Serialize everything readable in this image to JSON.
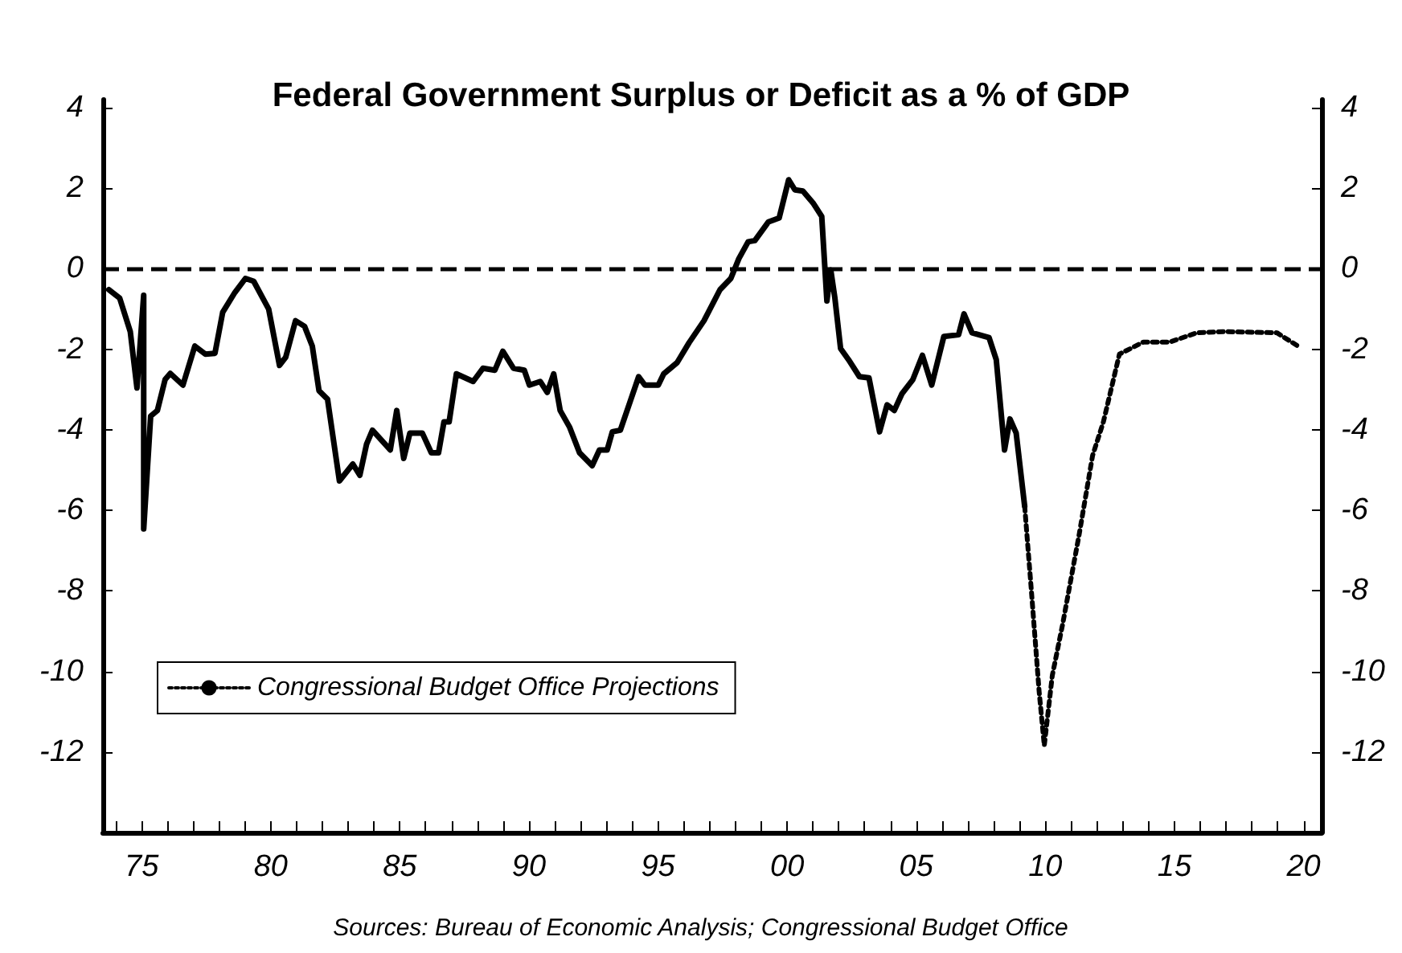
{
  "chart_data": {
    "type": "line",
    "title": "Federal Government Surplus or Deficit as a % of GDP",
    "annotations": [
      "Sources: Bureau of Economic Analysis; Congressional Budget Office"
    ],
    "xlim": [
      1973.5,
      2020.7
    ],
    "xticks": [
      {
        "value": 1974,
        "label": null
      },
      {
        "value": 1975,
        "label": "75"
      },
      {
        "value": 1976,
        "label": null
      },
      {
        "value": 1977,
        "label": null
      },
      {
        "value": 1978,
        "label": null
      },
      {
        "value": 1979,
        "label": null
      },
      {
        "value": 1980,
        "label": "80"
      },
      {
        "value": 1981,
        "label": null
      },
      {
        "value": 1982,
        "label": null
      },
      {
        "value": 1983,
        "label": null
      },
      {
        "value": 1984,
        "label": null
      },
      {
        "value": 1985,
        "label": "85"
      },
      {
        "value": 1986,
        "label": null
      },
      {
        "value": 1987,
        "label": null
      },
      {
        "value": 1988,
        "label": null
      },
      {
        "value": 1989,
        "label": null
      },
      {
        "value": 1990,
        "label": "90"
      },
      {
        "value": 1991,
        "label": null
      },
      {
        "value": 1992,
        "label": null
      },
      {
        "value": 1993,
        "label": null
      },
      {
        "value": 1994,
        "label": null
      },
      {
        "value": 1995,
        "label": "95"
      },
      {
        "value": 1996,
        "label": null
      },
      {
        "value": 1997,
        "label": null
      },
      {
        "value": 1998,
        "label": null
      },
      {
        "value": 1999,
        "label": null
      },
      {
        "value": 2000,
        "label": "00"
      },
      {
        "value": 2001,
        "label": null
      },
      {
        "value": 2002,
        "label": null
      },
      {
        "value": 2003,
        "label": null
      },
      {
        "value": 2004,
        "label": null
      },
      {
        "value": 2005,
        "label": "05"
      },
      {
        "value": 2006,
        "label": null
      },
      {
        "value": 2007,
        "label": null
      },
      {
        "value": 2008,
        "label": null
      },
      {
        "value": 2009,
        "label": null
      },
      {
        "value": 2010,
        "label": "10"
      },
      {
        "value": 2011,
        "label": null
      },
      {
        "value": 2012,
        "label": null
      },
      {
        "value": 2013,
        "label": null
      },
      {
        "value": 2014,
        "label": null
      },
      {
        "value": 2015,
        "label": "15"
      },
      {
        "value": 2016,
        "label": null
      },
      {
        "value": 2017,
        "label": null
      },
      {
        "value": 2018,
        "label": null
      },
      {
        "value": 2019,
        "label": null
      },
      {
        "value": 2020,
        "label": "20"
      }
    ],
    "ylim": [
      -14,
      4.2
    ],
    "yticks": [
      -12,
      -10,
      -8,
      -6,
      -4,
      -2,
      0,
      2,
      4
    ],
    "y2lim": [
      -14,
      4.2
    ],
    "y2ticks": [
      -12,
      -10,
      -8,
      -6,
      -4,
      -2,
      0,
      2,
      4
    ],
    "grid": false,
    "legend": "bottom left",
    "marker": "none",
    "ref_lines": [
      {
        "axis": "y",
        "value": 0,
        "color": "#000000",
        "line_style": "dashed"
      }
    ],
    "series": [
      {
        "color": "#000000",
        "line_style": "solid",
        "x": [
          1973.73,
          1974.15,
          1974.56,
          1974.82,
          1975.08,
          1975.08,
          1975.35,
          1975.61,
          1975.91,
          1976.11,
          1976.6,
          1977.06,
          1977.47,
          1977.84,
          1978.14,
          1978.61,
          1979.02,
          1979.34,
          1979.92,
          1980.34,
          1980.58,
          1980.96,
          1981.31,
          1981.61,
          1981.87,
          1982.2,
          1982.66,
          1983.18,
          1983.45,
          1983.71,
          1983.94,
          1984.63,
          1984.88,
          1985.15,
          1985.39,
          1985.87,
          1986.22,
          1986.5,
          1986.71,
          1986.91,
          1987.19,
          1987.84,
          1988.22,
          1988.68,
          1988.99,
          1989.4,
          1989.82,
          1990.02,
          1990.44,
          1990.71,
          1990.96,
          1991.21,
          1991.58,
          1991.96,
          1992.45,
          1992.73,
          1993.03,
          1993.23,
          1993.54,
          1994.25,
          1994.49,
          1995.01,
          1995.22,
          1995.74,
          1996.2,
          1996.78,
          1997.4,
          1997.82,
          1998.13,
          1998.49,
          1998.75,
          1999.27,
          1999.69,
          2000.06,
          2000.3,
          2000.61,
          2001.02,
          2001.34,
          2001.54,
          2001.69,
          2001.85,
          2002.07,
          2002.38,
          2002.8,
          2003.17,
          2003.58,
          2003.87,
          2004.15,
          2004.45,
          2004.87,
          2005.24,
          2005.6,
          2006.07,
          2006.64,
          2006.85,
          2007.16,
          2007.82,
          2008.1,
          2008.42,
          2008.63,
          2008.87,
          2009.2
        ],
        "values": [
          -0.52,
          -0.73,
          -1.56,
          -2.96,
          -0.66,
          -6.46,
          -3.66,
          -3.52,
          -2.75,
          -2.6,
          -2.89,
          -1.92,
          -2.12,
          -2.1,
          -1.08,
          -0.59,
          -0.24,
          -0.31,
          -1.0,
          -2.4,
          -2.2,
          -1.29,
          -1.43,
          -1.92,
          -3.03,
          -3.24,
          -5.27,
          -4.85,
          -5.13,
          -4.36,
          -4.01,
          -4.5,
          -3.52,
          -4.71,
          -4.08,
          -4.08,
          -4.57,
          -4.57,
          -3.8,
          -3.8,
          -2.61,
          -2.8,
          -2.47,
          -2.52,
          -2.05,
          -2.47,
          -2.52,
          -2.89,
          -2.8,
          -3.07,
          -2.61,
          -3.52,
          -3.94,
          -4.57,
          -4.89,
          -4.5,
          -4.5,
          -4.05,
          -4.01,
          -2.68,
          -2.89,
          -2.89,
          -2.61,
          -2.33,
          -1.84,
          -1.29,
          -0.52,
          -0.24,
          0.25,
          0.67,
          0.7,
          1.16,
          1.26,
          2.21,
          1.96,
          1.93,
          1.62,
          1.3,
          -0.8,
          -0.03,
          -0.73,
          -1.98,
          -2.26,
          -2.68,
          -2.71,
          -4.05,
          -3.38,
          -3.52,
          -3.1,
          -2.75,
          -2.15,
          -2.89,
          -1.68,
          -1.64,
          -1.12,
          -1.59,
          -1.71,
          -2.26,
          -4.5,
          -3.73,
          -4.08,
          -5.9
        ]
      },
      {
        "name": "Congressional Budget Office Projections",
        "color": "#000000",
        "line_style": "dotted",
        "x": [
          2009.2,
          2009.46,
          2009.76,
          2009.96,
          2010.27,
          2010.67,
          2011.31,
          2011.83,
          2012.25,
          2012.87,
          2013.8,
          2014.82,
          2015.87,
          2016.9,
          2018.97,
          2019.88
        ],
        "values": [
          -5.9,
          -8.0,
          -10.5,
          -11.84,
          -10.1,
          -8.83,
          -6.6,
          -4.64,
          -3.8,
          -2.12,
          -1.82,
          -1.82,
          -1.59,
          -1.56,
          -1.59,
          -1.96
        ]
      }
    ]
  }
}
